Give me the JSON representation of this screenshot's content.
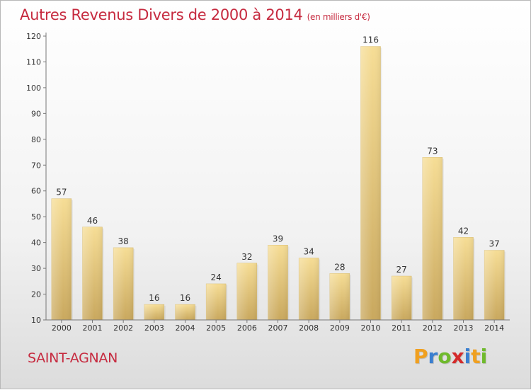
{
  "title": "Autres Revenus Divers de 2000 à 2014",
  "unit_note": "(en milliers d'€)",
  "commune": "SAINT-AGNAN",
  "logo": {
    "letters": [
      "P",
      "r",
      "o",
      "x",
      "i",
      "t",
      "i"
    ],
    "colors": [
      "#f0a020",
      "#3a7fd0",
      "#6fba2c",
      "#d42a2a",
      "#3a7fd0",
      "#f0a020",
      "#6fba2c"
    ]
  },
  "chart_data": {
    "type": "bar",
    "title": "Autres Revenus Divers de 2000 à 2014",
    "subtitle": "(en milliers d'€)",
    "xlabel": "",
    "ylabel": "",
    "categories": [
      "2000",
      "2001",
      "2002",
      "2003",
      "2004",
      "2005",
      "2006",
      "2007",
      "2008",
      "2009",
      "2010",
      "2011",
      "2012",
      "2013",
      "2014"
    ],
    "values": [
      57,
      46,
      38,
      16,
      16,
      24,
      32,
      39,
      34,
      28,
      116,
      27,
      73,
      42,
      37
    ],
    "ylim": [
      10,
      120
    ],
    "yticks": [
      10,
      20,
      30,
      40,
      50,
      60,
      70,
      80,
      90,
      100,
      110,
      120
    ],
    "grid": false,
    "bar_color": "#e8c978"
  }
}
